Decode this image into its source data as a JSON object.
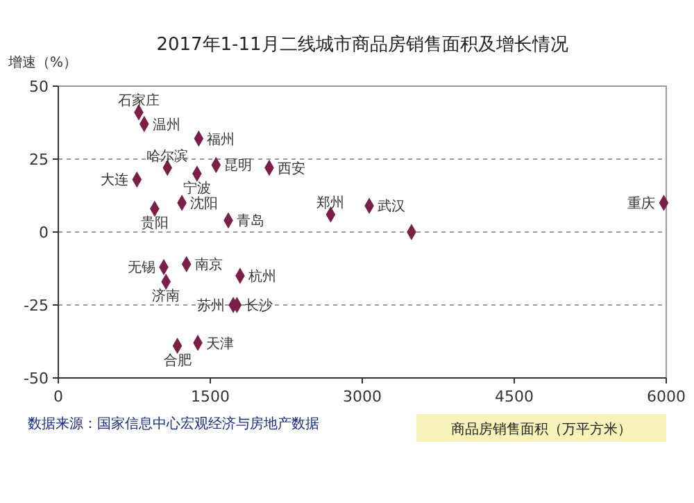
{
  "chart_data": {
    "type": "scatter",
    "title": "2017年1-11月二线城市商品房销售面积及增长情况",
    "ylabel": "增速（%）",
    "xlabel": "商品房销售面积（万平方米）",
    "x": [
      794,
      848,
      1386,
      1077,
      1369,
      1557,
      2082,
      776,
      951,
      1220,
      1678,
      2688,
      3069,
      5976,
      1041,
      1265,
      3486,
      1063,
      1794,
      1727,
      1763,
      1377,
      1175
    ],
    "series": [
      {
        "color": "#7a1f4a",
        "values": [
          41,
          37,
          32,
          22,
          20,
          23,
          22,
          18,
          8,
          10,
          4,
          6,
          9,
          10,
          -12,
          -11,
          0,
          -17,
          -15,
          -25,
          -25,
          -38,
          -39
        ]
      }
    ],
    "annotations": [
      {
        "text": "石家庄",
        "x": 794,
        "y": 41
      },
      {
        "text": "温州",
        "x": 848,
        "y": 37
      },
      {
        "text": "福州",
        "x": 1386,
        "y": 32
      },
      {
        "text": "哈尔滨",
        "x": 1077,
        "y": 22
      },
      {
        "text": "宁波",
        "x": 1369,
        "y": 20
      },
      {
        "text": "昆明",
        "x": 1557,
        "y": 23
      },
      {
        "text": "西安",
        "x": 2082,
        "y": 22
      },
      {
        "text": "大连",
        "x": 776,
        "y": 18
      },
      {
        "text": "贵阳",
        "x": 951,
        "y": 8
      },
      {
        "text": "沈阳",
        "x": 1220,
        "y": 10
      },
      {
        "text": "青岛",
        "x": 1678,
        "y": 4
      },
      {
        "text": "郑州",
        "x": 2688,
        "y": 6
      },
      {
        "text": "武汉",
        "x": 3069,
        "y": 9
      },
      {
        "text": "重庆",
        "x": 5976,
        "y": 10
      },
      {
        "text": "无锡",
        "x": 1041,
        "y": -12
      },
      {
        "text": "南京",
        "x": 1265,
        "y": -11
      },
      {
        "text": "济南",
        "x": 1063,
        "y": -17
      },
      {
        "text": "杭州",
        "x": 1794,
        "y": -15
      },
      {
        "text": "苏州",
        "x": 1727,
        "y": -25
      },
      {
        "text": "长沙",
        "x": 1763,
        "y": -25
      },
      {
        "text": "天津",
        "x": 1377,
        "y": -38
      },
      {
        "text": "合肥",
        "x": 1175,
        "y": -39
      },
      "数据来源：国家信息中心宏观经济与房地产数据"
    ],
    "xlim": [
      0,
      6000
    ],
    "xticks": [
      0,
      1500,
      3000,
      4500,
      6000
    ],
    "ylim": [
      -50,
      50
    ],
    "yticks": [
      -50,
      -25,
      0,
      25,
      50
    ],
    "grid": "y",
    "marker": "diamond"
  }
}
